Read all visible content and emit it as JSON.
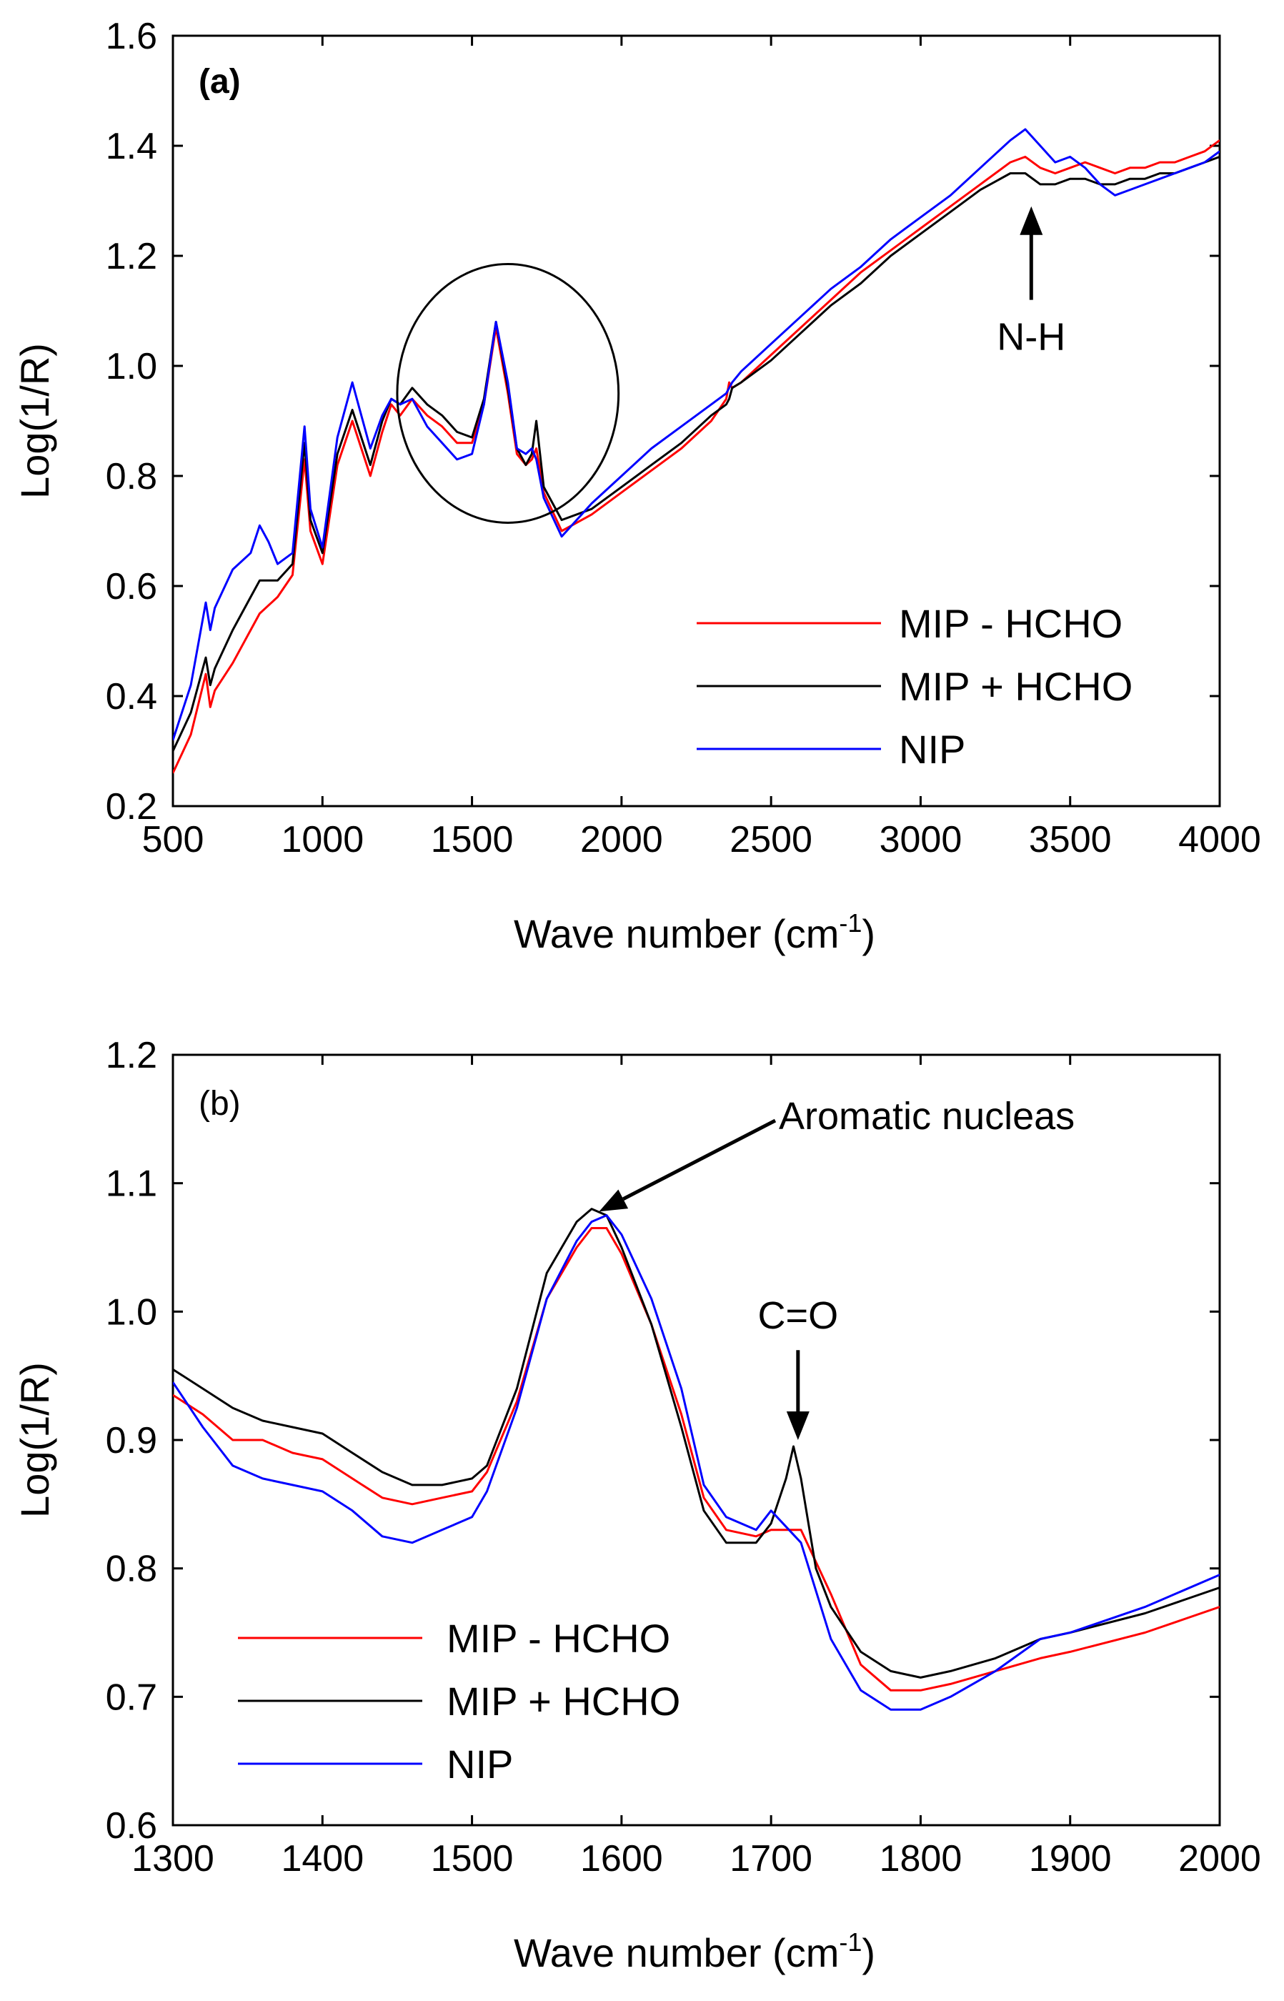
{
  "chart_data": [
    {
      "type": "line",
      "panel_label": "(a)",
      "xlabel": "Wave number (cm",
      "xlabel_sup": "-1",
      "xlabel_close": ")",
      "ylabel": "Log(1/R)",
      "xlim": [
        500,
        4000
      ],
      "ylim": [
        0.2,
        1.6
      ],
      "xticks": [
        500,
        1000,
        1500,
        2000,
        2500,
        3000,
        3500,
        4000
      ],
      "yticks": [
        0.2,
        0.4,
        0.6,
        0.8,
        1.0,
        1.2,
        1.4,
        1.6
      ],
      "ytick_labels": [
        "0.2",
        "0.4",
        "0.6",
        "0.8",
        "1.0",
        "1.2",
        "1.4",
        "1.6"
      ],
      "legend_position": "lower-right",
      "series": [
        {
          "name": "MIP - HCHO",
          "color": "#ff0000",
          "x": [
            500,
            560,
            610,
            625,
            640,
            700,
            760,
            790,
            850,
            900,
            940,
            960,
            1000,
            1050,
            1100,
            1160,
            1200,
            1230,
            1260,
            1300,
            1350,
            1400,
            1450,
            1500,
            1540,
            1580,
            1620,
            1650,
            1680,
            1700,
            1715,
            1740,
            1800,
            1900,
            2000,
            2100,
            2200,
            2300,
            2350,
            2360,
            2370,
            2400,
            2500,
            2600,
            2700,
            2800,
            2900,
            3000,
            3100,
            3200,
            3300,
            3350,
            3400,
            3450,
            3500,
            3550,
            3600,
            3650,
            3700,
            3750,
            3800,
            3850,
            3900,
            3950,
            4000
          ],
          "y": [
            0.26,
            0.33,
            0.44,
            0.38,
            0.41,
            0.46,
            0.52,
            0.55,
            0.58,
            0.62,
            0.83,
            0.7,
            0.64,
            0.82,
            0.9,
            0.8,
            0.88,
            0.93,
            0.91,
            0.94,
            0.91,
            0.89,
            0.86,
            0.86,
            0.93,
            1.07,
            0.95,
            0.84,
            0.82,
            0.83,
            0.85,
            0.77,
            0.7,
            0.73,
            0.77,
            0.81,
            0.85,
            0.9,
            0.94,
            0.97,
            0.96,
            0.97,
            1.02,
            1.07,
            1.12,
            1.17,
            1.21,
            1.25,
            1.29,
            1.33,
            1.37,
            1.38,
            1.36,
            1.35,
            1.36,
            1.37,
            1.36,
            1.35,
            1.36,
            1.36,
            1.37,
            1.37,
            1.38,
            1.39,
            1.41
          ]
        },
        {
          "name": "MIP + HCHO",
          "color": "#000000",
          "x": [
            500,
            560,
            610,
            625,
            640,
            700,
            760,
            790,
            850,
            900,
            940,
            960,
            1000,
            1050,
            1100,
            1160,
            1200,
            1230,
            1260,
            1300,
            1350,
            1400,
            1450,
            1500,
            1540,
            1580,
            1620,
            1650,
            1680,
            1700,
            1715,
            1740,
            1800,
            1900,
            2000,
            2100,
            2200,
            2300,
            2350,
            2360,
            2370,
            2400,
            2500,
            2600,
            2700,
            2800,
            2900,
            3000,
            3100,
            3200,
            3300,
            3350,
            3400,
            3450,
            3500,
            3550,
            3600,
            3650,
            3700,
            3750,
            3800,
            3850,
            3900,
            3950,
            4000
          ],
          "y": [
            0.3,
            0.37,
            0.47,
            0.42,
            0.45,
            0.52,
            0.58,
            0.61,
            0.61,
            0.64,
            0.86,
            0.72,
            0.66,
            0.84,
            0.92,
            0.82,
            0.9,
            0.94,
            0.93,
            0.96,
            0.93,
            0.91,
            0.88,
            0.87,
            0.94,
            1.08,
            0.96,
            0.85,
            0.82,
            0.84,
            0.9,
            0.78,
            0.72,
            0.74,
            0.78,
            0.82,
            0.86,
            0.91,
            0.93,
            0.94,
            0.96,
            0.97,
            1.01,
            1.06,
            1.11,
            1.15,
            1.2,
            1.24,
            1.28,
            1.32,
            1.35,
            1.35,
            1.33,
            1.33,
            1.34,
            1.34,
            1.33,
            1.33,
            1.34,
            1.34,
            1.35,
            1.35,
            1.36,
            1.37,
            1.38
          ]
        },
        {
          "name": "NIP",
          "color": "#0000ff",
          "x": [
            500,
            560,
            610,
            625,
            640,
            700,
            760,
            790,
            820,
            850,
            900,
            940,
            960,
            1000,
            1050,
            1100,
            1160,
            1200,
            1230,
            1260,
            1300,
            1350,
            1400,
            1450,
            1500,
            1540,
            1580,
            1620,
            1650,
            1680,
            1700,
            1715,
            1740,
            1800,
            1900,
            2000,
            2100,
            2200,
            2300,
            2350,
            2360,
            2370,
            2400,
            2500,
            2600,
            2700,
            2800,
            2900,
            3000,
            3100,
            3200,
            3300,
            3350,
            3400,
            3450,
            3500,
            3550,
            3600,
            3650,
            3700,
            3750,
            3800,
            3850,
            3900,
            3950,
            4000
          ],
          "y": [
            0.32,
            0.42,
            0.57,
            0.52,
            0.56,
            0.63,
            0.66,
            0.71,
            0.68,
            0.64,
            0.66,
            0.89,
            0.74,
            0.67,
            0.87,
            0.97,
            0.85,
            0.91,
            0.94,
            0.93,
            0.94,
            0.89,
            0.86,
            0.83,
            0.84,
            0.93,
            1.08,
            0.97,
            0.85,
            0.84,
            0.85,
            0.83,
            0.76,
            0.69,
            0.75,
            0.8,
            0.85,
            0.89,
            0.93,
            0.95,
            0.96,
            0.97,
            0.99,
            1.04,
            1.09,
            1.14,
            1.18,
            1.23,
            1.27,
            1.31,
            1.36,
            1.41,
            1.43,
            1.4,
            1.37,
            1.38,
            1.36,
            1.33,
            1.31,
            1.32,
            1.33,
            1.34,
            1.35,
            1.36,
            1.37,
            1.39
          ]
        }
      ],
      "annotations": [
        {
          "text": "N-H",
          "type": "arrow",
          "x": 3370,
          "y_tail": 1.12,
          "y_head": 1.29
        },
        {
          "type": "circle",
          "label": "highlight",
          "cx": 1620,
          "cy": 0.95,
          "rx_data": 370,
          "ry_data": 0.235
        }
      ]
    },
    {
      "type": "line",
      "panel_label": "(b)",
      "xlabel": "Wave number (cm",
      "xlabel_sup": "-1",
      "xlabel_close": ")",
      "ylabel": "Log(1/R)",
      "xlim": [
        1300,
        2000
      ],
      "ylim": [
        0.6,
        1.2
      ],
      "xticks": [
        1300,
        1400,
        1500,
        1600,
        1700,
        1800,
        1900,
        2000
      ],
      "yticks": [
        0.6,
        0.7,
        0.8,
        0.9,
        1.0,
        1.1,
        1.2
      ],
      "ytick_labels": [
        "0.6",
        "0.7",
        "0.8",
        "0.9",
        "1.0",
        "1.1",
        "1.2"
      ],
      "legend_position": "lower-left",
      "series": [
        {
          "name": "MIP - HCHO",
          "color": "#ff0000",
          "x": [
            1300,
            1320,
            1340,
            1360,
            1380,
            1400,
            1420,
            1440,
            1460,
            1480,
            1500,
            1510,
            1530,
            1550,
            1570,
            1580,
            1590,
            1600,
            1620,
            1640,
            1655,
            1670,
            1690,
            1700,
            1720,
            1740,
            1760,
            1780,
            1800,
            1820,
            1850,
            1880,
            1900,
            1950,
            2000
          ],
          "y": [
            0.935,
            0.92,
            0.9,
            0.9,
            0.89,
            0.885,
            0.87,
            0.855,
            0.85,
            0.855,
            0.86,
            0.875,
            0.93,
            1.01,
            1.05,
            1.065,
            1.065,
            1.045,
            0.99,
            0.92,
            0.855,
            0.83,
            0.825,
            0.83,
            0.83,
            0.78,
            0.725,
            0.705,
            0.705,
            0.71,
            0.72,
            0.73,
            0.735,
            0.75,
            0.77
          ]
        },
        {
          "name": "MIP + HCHO",
          "color": "#000000",
          "x": [
            1300,
            1320,
            1340,
            1360,
            1380,
            1400,
            1420,
            1440,
            1460,
            1480,
            1500,
            1510,
            1530,
            1550,
            1570,
            1580,
            1590,
            1600,
            1620,
            1640,
            1655,
            1670,
            1690,
            1700,
            1710,
            1715,
            1720,
            1730,
            1740,
            1760,
            1780,
            1800,
            1820,
            1850,
            1880,
            1900,
            1950,
            2000
          ],
          "y": [
            0.955,
            0.94,
            0.925,
            0.915,
            0.91,
            0.905,
            0.89,
            0.875,
            0.865,
            0.865,
            0.87,
            0.88,
            0.94,
            1.03,
            1.07,
            1.08,
            1.075,
            1.05,
            0.99,
            0.91,
            0.845,
            0.82,
            0.82,
            0.835,
            0.87,
            0.895,
            0.87,
            0.8,
            0.77,
            0.735,
            0.72,
            0.715,
            0.72,
            0.73,
            0.745,
            0.75,
            0.765,
            0.785
          ]
        },
        {
          "name": "NIP",
          "color": "#0000ff",
          "x": [
            1300,
            1320,
            1340,
            1360,
            1380,
            1400,
            1420,
            1440,
            1460,
            1480,
            1500,
            1510,
            1530,
            1550,
            1570,
            1580,
            1590,
            1600,
            1620,
            1640,
            1655,
            1670,
            1690,
            1700,
            1720,
            1740,
            1760,
            1780,
            1800,
            1820,
            1850,
            1880,
            1900,
            1950,
            2000
          ],
          "y": [
            0.945,
            0.91,
            0.88,
            0.87,
            0.865,
            0.86,
            0.845,
            0.825,
            0.82,
            0.83,
            0.84,
            0.86,
            0.925,
            1.01,
            1.055,
            1.07,
            1.075,
            1.06,
            1.01,
            0.94,
            0.865,
            0.84,
            0.83,
            0.845,
            0.82,
            0.745,
            0.705,
            0.69,
            0.69,
            0.7,
            0.72,
            0.745,
            0.75,
            0.77,
            0.795
          ]
        }
      ],
      "annotations": [
        {
          "text": "Aromatic nucleas",
          "type": "arrow",
          "head_x": 1585,
          "head_y": 1.078
        },
        {
          "text": "C=O",
          "type": "arrow",
          "x": 1718,
          "y_tail": 0.97,
          "y_head": 0.9
        }
      ]
    }
  ]
}
